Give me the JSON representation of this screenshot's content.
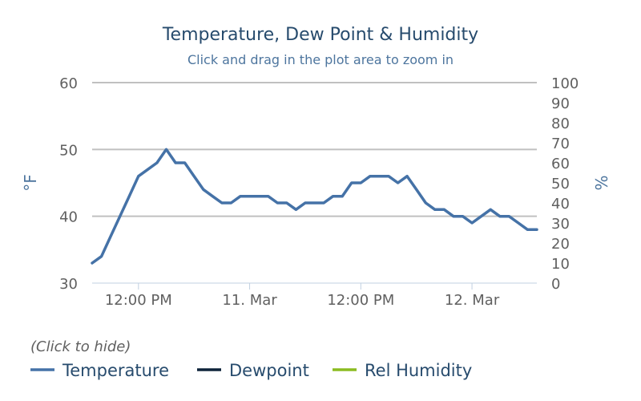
{
  "chart_data": {
    "type": "line",
    "title": "Temperature, Dew Point & Humidity",
    "subtitle": "Click and drag in the plot area to zoom in",
    "y_left": {
      "label": "°F",
      "ticks": [
        "60",
        "50",
        "40",
        "30"
      ],
      "ylim": [
        30,
        60
      ]
    },
    "y_right": {
      "label": "%",
      "ticks": [
        "100",
        "90",
        "80",
        "70",
        "60",
        "50",
        "40",
        "30",
        "20",
        "10",
        "0"
      ],
      "ylim": [
        0,
        100
      ]
    },
    "x_ticks": [
      "12:00 PM",
      "11. Mar",
      "12:00 PM",
      "12. Mar"
    ],
    "x_range": [
      "2024-03-10 07:00",
      "2024-03-12 07:00"
    ],
    "series": [
      {
        "name": "Temperature",
        "color": "#4572A7",
        "x": [
          "2024-03-10 07:00",
          "2024-03-10 08:00",
          "2024-03-10 09:00",
          "2024-03-10 10:00",
          "2024-03-10 11:00",
          "2024-03-10 12:00",
          "2024-03-10 13:00",
          "2024-03-10 14:00",
          "2024-03-10 15:00",
          "2024-03-10 16:00",
          "2024-03-10 17:00",
          "2024-03-10 18:00",
          "2024-03-10 19:00",
          "2024-03-10 20:00",
          "2024-03-10 21:00",
          "2024-03-10 22:00",
          "2024-03-10 23:00",
          "2024-03-11 00:00",
          "2024-03-11 01:00",
          "2024-03-11 02:00",
          "2024-03-11 03:00",
          "2024-03-11 04:00",
          "2024-03-11 05:00",
          "2024-03-11 06:00",
          "2024-03-11 07:00",
          "2024-03-11 08:00",
          "2024-03-11 09:00",
          "2024-03-11 10:00",
          "2024-03-11 11:00",
          "2024-03-11 12:00",
          "2024-03-11 13:00",
          "2024-03-11 14:00",
          "2024-03-11 15:00",
          "2024-03-11 16:00",
          "2024-03-11 17:00",
          "2024-03-11 18:00",
          "2024-03-11 19:00",
          "2024-03-11 20:00",
          "2024-03-11 21:00",
          "2024-03-11 22:00",
          "2024-03-11 23:00",
          "2024-03-12 00:00",
          "2024-03-12 01:00",
          "2024-03-12 02:00",
          "2024-03-12 03:00",
          "2024-03-12 04:00",
          "2024-03-12 05:00",
          "2024-03-12 06:00",
          "2024-03-12 07:00"
        ],
        "values": [
          33,
          34,
          37,
          40,
          43,
          46,
          47,
          48,
          50,
          48,
          48,
          46,
          44,
          43,
          42,
          42,
          43,
          43,
          43,
          43,
          42,
          42,
          41,
          42,
          42,
          42,
          43,
          43,
          45,
          45,
          46,
          46,
          46,
          45,
          46,
          44,
          42,
          41,
          41,
          40,
          40,
          39,
          40,
          41,
          40,
          40,
          39,
          38,
          38
        ]
      },
      {
        "name": "Dewpoint",
        "color": "#0d233a",
        "values": []
      },
      {
        "name": "Rel Humidity",
        "color": "#8bbc21",
        "values": []
      }
    ],
    "grid": true,
    "legend": {
      "note": "(Click to hide)",
      "placement": "bottom-left"
    }
  }
}
